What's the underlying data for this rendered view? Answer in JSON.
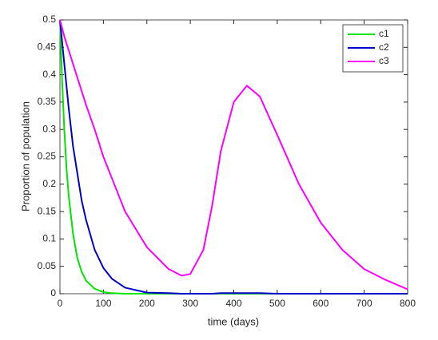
{
  "chart_data": {
    "type": "line",
    "xlabel": "time (days)",
    "ylabel": "Proportion of population",
    "x": [
      0,
      5,
      10,
      15,
      20,
      30,
      40,
      50,
      60,
      80,
      100,
      120,
      150,
      200,
      250,
      280,
      300,
      330,
      350,
      370,
      400,
      430,
      460,
      500,
      550,
      600,
      650,
      700,
      750,
      800
    ],
    "series": [
      {
        "name": "c1",
        "color": "#00e600",
        "values": [
          0.5,
          0.39,
          0.3,
          0.23,
          0.18,
          0.11,
          0.065,
          0.04,
          0.024,
          0.009,
          0.003,
          0.001,
          0,
          0,
          0,
          0,
          0,
          0,
          0,
          0,
          0,
          0,
          0,
          0,
          0,
          0,
          0,
          0,
          0,
          0
        ]
      },
      {
        "name": "c2",
        "color": "#0000cc",
        "values": [
          0.5,
          0.46,
          0.42,
          0.38,
          0.34,
          0.27,
          0.22,
          0.17,
          0.135,
          0.08,
          0.047,
          0.027,
          0.011,
          0.002,
          0.001,
          0,
          0,
          0,
          0,
          0.001,
          0.001,
          0.001,
          0.001,
          0,
          0,
          0,
          0,
          0,
          0,
          0
        ]
      },
      {
        "name": "c3",
        "color": "#ff00ff",
        "values": [
          0.5,
          0.485,
          0.47,
          0.457,
          0.445,
          0.42,
          0.395,
          0.37,
          0.345,
          0.3,
          0.25,
          0.21,
          0.15,
          0.085,
          0.045,
          0.033,
          0.036,
          0.08,
          0.16,
          0.26,
          0.35,
          0.38,
          0.36,
          0.29,
          0.2,
          0.13,
          0.08,
          0.045,
          0.025,
          0.008
        ]
      }
    ],
    "xlim": [
      0,
      800
    ],
    "xticks": [
      0,
      100,
      200,
      300,
      400,
      500,
      600,
      700,
      800
    ],
    "ylim": [
      0,
      0.5
    ],
    "yticks": [
      0,
      0.05,
      0.1,
      0.15,
      0.2,
      0.25,
      0.3,
      0.35,
      0.4,
      0.45,
      0.5
    ],
    "legend": "northeast",
    "grid": false
  }
}
